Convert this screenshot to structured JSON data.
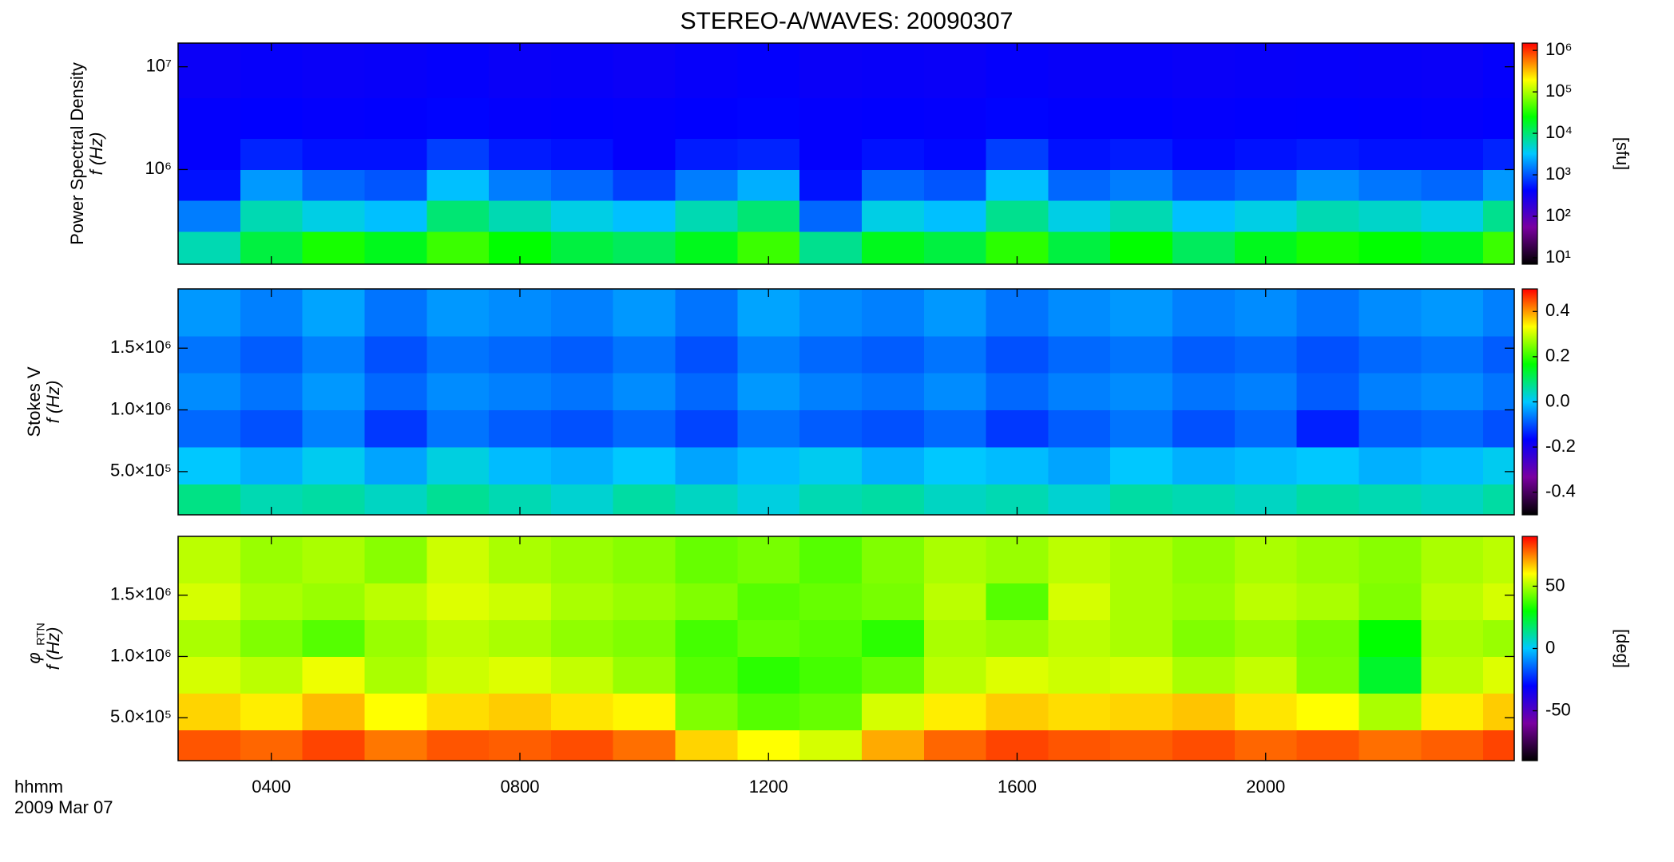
{
  "title": "STEREO-A/WAVES: 20090307",
  "time_axis": {
    "xlabel": "hhmm",
    "date": "2009 Mar 07",
    "xlim": [
      2.5,
      24
    ],
    "xticks": [
      {
        "value": 4,
        "label": "0400"
      },
      {
        "value": 8,
        "label": "0800"
      },
      {
        "value": 12,
        "label": "1200"
      },
      {
        "value": 16,
        "label": "1600"
      },
      {
        "value": 20,
        "label": "2000"
      }
    ],
    "xbins": [
      2.5,
      3.5,
      4.5,
      5.5,
      6.5,
      7.5,
      8.5,
      9.5,
      10.5,
      11.5,
      12.5,
      13.5,
      14.5,
      15.5,
      16.5,
      17.5,
      18.5,
      19.5,
      20.5,
      21.5,
      22.5,
      23.5,
      24
    ]
  },
  "colormap": [
    "#000000",
    "#7a00a0",
    "#0000ff",
    "#00c8ff",
    "#00ff00",
    "#ffff00",
    "#ff0000"
  ],
  "chart_data": [
    {
      "type": "heatmap",
      "ylabel": [
        "Power Spectral Density",
        "f (Hz)"
      ],
      "log_y": true,
      "ylim": [
        120000,
        17000000
      ],
      "yticks": [
        {
          "value": 1000000,
          "label": "10⁶"
        },
        {
          "value": 10000000,
          "label": "10⁷"
        }
      ],
      "ybins": [
        120000,
        250000,
        500000,
        1000000,
        2000000,
        5000000,
        17000000
      ],
      "z": [
        [
          6000,
          15000,
          30000,
          20000,
          40000,
          25000,
          15000,
          12000,
          20000,
          40000,
          8000,
          20000,
          15000,
          35000,
          15000,
          25000,
          12000,
          20000,
          30000,
          25000,
          20000,
          40000
        ],
        [
          1500,
          6000,
          4000,
          3000,
          10000,
          6000,
          4000,
          3000,
          6000,
          10000,
          1200,
          4000,
          3000,
          8000,
          4000,
          6000,
          3000,
          4000,
          6000,
          5000,
          4000,
          8000
        ],
        [
          500,
          2000,
          1200,
          1000,
          3000,
          1500,
          1200,
          800,
          1500,
          2500,
          500,
          1200,
          1000,
          3000,
          1200,
          1500,
          1000,
          1200,
          1800,
          1400,
          1200,
          2000
        ],
        [
          400,
          600,
          500,
          500,
          800,
          550,
          500,
          400,
          550,
          600,
          400,
          500,
          450,
          800,
          500,
          550,
          450,
          500,
          550,
          500,
          500,
          600
        ],
        [
          400,
          420,
          400,
          410,
          430,
          400,
          410,
          400,
          420,
          430,
          400,
          410,
          400,
          430,
          410,
          420,
          400,
          410,
          420,
          410,
          400,
          420
        ],
        [
          350,
          380,
          360,
          370,
          390,
          360,
          370,
          350,
          380,
          400,
          360,
          370,
          360,
          390,
          370,
          380,
          360,
          370,
          380,
          370,
          360,
          390
        ]
      ],
      "clog": true,
      "clim": [
        7,
        1500000
      ],
      "cticks": [
        {
          "value": 10,
          "label": "10¹"
        },
        {
          "value": 100,
          "label": "10²"
        },
        {
          "value": 1000,
          "label": "10³"
        },
        {
          "value": 10000,
          "label": "10⁴"
        },
        {
          "value": 100000,
          "label": "10⁵"
        },
        {
          "value": 1000000,
          "label": "10⁶"
        }
      ],
      "clabel": "[sfu]"
    },
    {
      "type": "heatmap",
      "ylabel": [
        "Stokes V",
        "f (Hz)"
      ],
      "log_y": false,
      "ylim": [
        150000,
        1980000
      ],
      "yticks": [
        {
          "value": 500000,
          "label": "5.0×10⁵"
        },
        {
          "value": 1000000,
          "label": "1.0×10⁶"
        },
        {
          "value": 1500000,
          "label": "1.5×10⁶"
        }
      ],
      "ybins": [
        150000,
        400000,
        700000,
        1000000,
        1300000,
        1600000,
        1980000
      ],
      "z": [
        [
          0.08,
          0.05,
          0.06,
          0.04,
          0.07,
          0.05,
          0.03,
          0.06,
          0.04,
          0.02,
          0.05,
          0.06,
          0.04,
          0.05,
          0.03,
          0.06,
          0.05,
          0.04,
          0.06,
          0.05,
          0.04,
          0.06
        ],
        [
          0,
          -0.02,
          0.01,
          -0.03,
          0.02,
          -0.01,
          -0.02,
          0,
          -0.03,
          -0.01,
          0.01,
          -0.02,
          0,
          -0.01,
          -0.03,
          0,
          -0.02,
          -0.01,
          0,
          -0.02,
          -0.01,
          0.01
        ],
        [
          -0.08,
          -0.1,
          -0.06,
          -0.12,
          -0.07,
          -0.09,
          -0.1,
          -0.08,
          -0.11,
          -0.07,
          -0.09,
          -0.1,
          -0.08,
          -0.12,
          -0.09,
          -0.07,
          -0.1,
          -0.08,
          -0.14,
          -0.09,
          -0.08,
          -0.1
        ],
        [
          -0.05,
          -0.07,
          -0.04,
          -0.08,
          -0.05,
          -0.06,
          -0.07,
          -0.05,
          -0.08,
          -0.04,
          -0.06,
          -0.07,
          -0.05,
          -0.08,
          -0.06,
          -0.05,
          -0.07,
          -0.06,
          -0.09,
          -0.06,
          -0.05,
          -0.07
        ],
        [
          -0.07,
          -0.09,
          -0.06,
          -0.1,
          -0.07,
          -0.08,
          -0.09,
          -0.07,
          -0.1,
          -0.06,
          -0.08,
          -0.09,
          -0.07,
          -0.1,
          -0.08,
          -0.07,
          -0.09,
          -0.08,
          -0.1,
          -0.08,
          -0.07,
          -0.09
        ],
        [
          -0.04,
          -0.06,
          -0.03,
          -0.07,
          -0.04,
          -0.05,
          -0.06,
          -0.04,
          -0.07,
          -0.03,
          -0.05,
          -0.06,
          -0.04,
          -0.07,
          -0.05,
          -0.04,
          -0.06,
          -0.05,
          -0.07,
          -0.05,
          -0.04,
          -0.06
        ]
      ],
      "clog": false,
      "clim": [
        -0.5,
        0.5
      ],
      "cticks": [
        -0.4,
        -0.2,
        {
          "value": 0,
          "label": "0.0"
        },
        0.2,
        0.4
      ]
    },
    {
      "type": "heatmap",
      "ylabel": [
        "φ",
        "f (Hz)"
      ],
      "ylabel_sub": "RTN",
      "log_y": false,
      "ylim": [
        150000,
        1980000
      ],
      "yticks": [
        {
          "value": 500000,
          "label": "5.0×10⁵"
        },
        {
          "value": 1000000,
          "label": "1.0×10⁶"
        },
        {
          "value": 1500000,
          "label": "1.5×10⁶"
        }
      ],
      "ybins": [
        150000,
        400000,
        700000,
        1000000,
        1300000,
        1600000,
        1980000
      ],
      "z": [
        [
          80,
          78,
          82,
          76,
          80,
          79,
          81,
          77,
          65,
          60,
          55,
          70,
          78,
          82,
          80,
          79,
          81,
          78,
          80,
          77,
          79,
          82
        ],
        [
          65,
          62,
          68,
          60,
          64,
          66,
          63,
          61,
          45,
          40,
          42,
          55,
          62,
          66,
          64,
          65,
          67,
          63,
          60,
          50,
          62,
          66
        ],
        [
          55,
          52,
          58,
          50,
          54,
          56,
          53,
          48,
          40,
          35,
          38,
          42,
          52,
          56,
          54,
          55,
          50,
          53,
          45,
          25,
          52,
          56
        ],
        [
          50,
          45,
          40,
          48,
          52,
          50,
          47,
          45,
          38,
          42,
          40,
          35,
          50,
          48,
          52,
          50,
          45,
          48,
          44,
          30,
          50,
          48
        ],
        [
          55,
          50,
          48,
          52,
          56,
          54,
          50,
          48,
          45,
          40,
          42,
          44,
          52,
          40,
          55,
          50,
          48,
          52,
          50,
          45,
          52,
          55
        ],
        [
          52,
          48,
          50,
          46,
          54,
          50,
          48,
          46,
          42,
          44,
          40,
          45,
          50,
          48,
          52,
          50,
          47,
          50,
          48,
          46,
          50,
          52
        ]
      ],
      "clog": false,
      "clim": [
        -90,
        90
      ],
      "cticks": [
        -50,
        0,
        50
      ],
      "clabel": "[deg]"
    }
  ]
}
